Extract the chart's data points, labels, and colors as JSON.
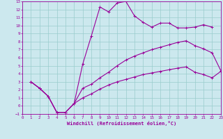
{
  "xlabel": "Windchill (Refroidissement éolien,°C)",
  "bg_color": "#cce8ee",
  "grid_color": "#99cccc",
  "line_color": "#990099",
  "xlim": [
    0,
    23
  ],
  "ylim": [
    -1,
    13
  ],
  "xticks": [
    0,
    1,
    2,
    3,
    4,
    5,
    6,
    7,
    8,
    9,
    10,
    11,
    12,
    13,
    14,
    15,
    16,
    17,
    18,
    19,
    20,
    21,
    22,
    23
  ],
  "yticks": [
    -1,
    0,
    1,
    2,
    3,
    4,
    5,
    6,
    7,
    8,
    9,
    10,
    11,
    12,
    13
  ],
  "curve1_x": [
    1,
    2,
    3,
    4,
    5,
    6,
    7,
    8,
    9,
    10,
    11,
    12,
    13,
    14,
    15,
    16,
    17,
    18,
    19,
    20,
    21,
    22
  ],
  "curve1_y": [
    3.0,
    2.2,
    1.2,
    -0.8,
    -0.8,
    0.3,
    5.2,
    8.7,
    12.3,
    11.7,
    12.8,
    13.0,
    11.2,
    10.4,
    9.8,
    10.3,
    10.3,
    9.7,
    9.7,
    9.8,
    10.1,
    9.8
  ],
  "curve2_x": [
    1,
    2,
    3,
    4,
    5,
    6,
    7,
    8,
    9,
    10,
    11,
    12,
    13,
    14,
    15,
    16,
    17,
    18,
    19,
    20,
    21,
    22,
    23
  ],
  "curve2_y": [
    3.0,
    2.2,
    1.2,
    -0.8,
    -0.8,
    0.3,
    2.2,
    2.7,
    3.5,
    4.2,
    5.0,
    5.7,
    6.2,
    6.6,
    7.0,
    7.3,
    7.6,
    7.9,
    8.1,
    7.5,
    7.1,
    6.6,
    4.4
  ],
  "curve3_x": [
    1,
    2,
    3,
    4,
    5,
    6,
    7,
    8,
    9,
    10,
    11,
    12,
    13,
    14,
    15,
    16,
    17,
    18,
    19,
    20,
    21,
    22,
    23
  ],
  "curve3_y": [
    3.0,
    2.2,
    1.2,
    -0.8,
    -0.8,
    0.3,
    1.0,
    1.5,
    2.1,
    2.6,
    3.0,
    3.3,
    3.6,
    3.9,
    4.1,
    4.3,
    4.5,
    4.7,
    4.85,
    4.2,
    3.9,
    3.5,
    4.3
  ]
}
